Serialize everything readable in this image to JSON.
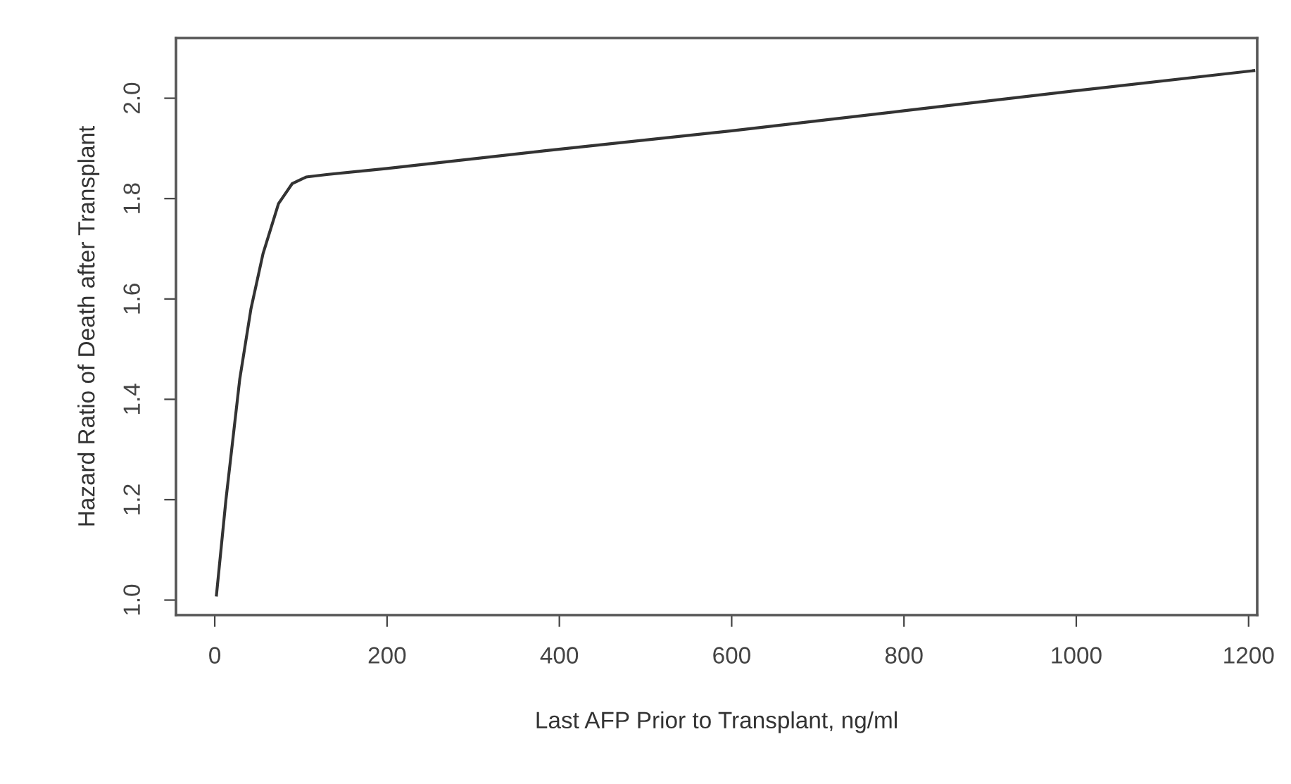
{
  "chart_data": {
    "type": "line",
    "xlabel": "Last AFP Prior to Transplant, ng/ml",
    "ylabel": "Hazard Ratio of Death after Transplant",
    "series": [
      {
        "color": "#333333",
        "x": [
          2,
          13,
          29,
          42,
          56,
          74,
          90,
          106,
          130,
          200,
          382,
          600,
          800,
          1000,
          1206
        ],
        "values": [
          1.01,
          1.2,
          1.44,
          1.58,
          1.69,
          1.79,
          1.83,
          1.843,
          1.848,
          1.86,
          1.895,
          1.935,
          1.975,
          2.015,
          2.055
        ]
      }
    ],
    "xlim": [
      -45,
      1210
    ],
    "ylim": [
      0.97,
      2.12
    ],
    "xticks": [
      0,
      200,
      400,
      600,
      800,
      1000,
      1200
    ],
    "yticks": [
      {
        "value": 1.0,
        "label": "1.0"
      },
      1.2,
      1.4,
      1.6,
      1.8,
      {
        "value": 2.0,
        "label": "2.0"
      }
    ],
    "grid": false,
    "legend": false,
    "marker": "none",
    "line_style": "solid"
  }
}
